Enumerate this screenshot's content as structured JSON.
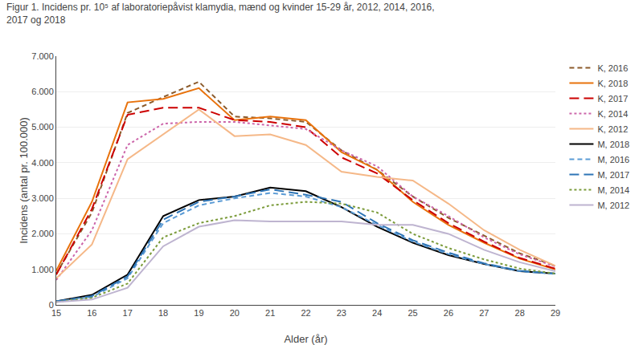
{
  "chart_data": {
    "type": "line",
    "title": "Figur 1. Incidens pr. 10⁵ af laboratoriepåvist klamydia, mænd og kvinder 15-29 år, 2012, 2014, 2016,",
    "subtitle": "2017 og 2018",
    "x_label": "Alder (år)",
    "y_label": "Incidens (antal pr. 100.000)",
    "x": [
      15,
      16,
      17,
      18,
      19,
      20,
      21,
      22,
      23,
      24,
      25,
      26,
      27,
      28,
      29
    ],
    "xlim": [
      15,
      29
    ],
    "xticks": [
      15,
      16,
      17,
      18,
      19,
      20,
      21,
      22,
      23,
      24,
      25,
      26,
      27,
      28,
      29
    ],
    "ylim": [
      0,
      7000
    ],
    "yticks": [
      0,
      {
        "value": 1000,
        "label": "1.000"
      },
      {
        "value": 2000,
        "label": "2.000"
      },
      {
        "value": 3000,
        "label": "3.000"
      },
      {
        "value": 4000,
        "label": "4.000"
      },
      {
        "value": 5000,
        "label": "5.000"
      },
      {
        "value": 6000,
        "label": "6.000"
      },
      {
        "value": 7000,
        "label": "7.000"
      }
    ],
    "grid": "y",
    "legend": "right",
    "series": [
      {
        "name": "K, 2016",
        "color": "#8B5A2B",
        "line_style": "dashed_short",
        "values": [
          870,
          2600,
          5400,
          5850,
          6280,
          5300,
          5250,
          5150,
          4350,
          3800,
          3050,
          2450,
          1950,
          1450,
          1100
        ]
      },
      {
        "name": "K, 2018",
        "color": "#E8720C",
        "line_style": "solid",
        "values": [
          960,
          2900,
          5700,
          5800,
          6100,
          5200,
          5300,
          5200,
          4300,
          3800,
          2900,
          2250,
          1750,
          1300,
          1000
        ]
      },
      {
        "name": "K, 2017",
        "color": "#CC0000",
        "line_style": "dashed_long",
        "values": [
          850,
          2700,
          5350,
          5550,
          5550,
          5200,
          5150,
          5000,
          4150,
          3700,
          2950,
          2300,
          1780,
          1320,
          1020
        ]
      },
      {
        "name": "K, 2014",
        "color": "#CC66AA",
        "line_style": "dotted",
        "values": [
          700,
          2100,
          4500,
          5100,
          5150,
          5150,
          5050,
          4950,
          4350,
          3900,
          3050,
          2500,
          1900,
          1420,
          1080
        ]
      },
      {
        "name": "K, 2012",
        "color": "#F5B888",
        "line_style": "solid",
        "values": [
          750,
          1700,
          4100,
          4800,
          5500,
          4750,
          4800,
          4500,
          3750,
          3600,
          3500,
          2850,
          2100,
          1550,
          1100
        ]
      },
      {
        "name": "M, 2018",
        "color": "#000000",
        "line_style": "solid",
        "values": [
          100,
          280,
          850,
          2500,
          2950,
          3050,
          3300,
          3200,
          2750,
          2200,
          1750,
          1400,
          1150,
          950,
          880
        ]
      },
      {
        "name": "M, 2016",
        "color": "#5B9BD5",
        "line_style": "dashed_short",
        "values": [
          100,
          220,
          750,
          2300,
          2800,
          3000,
          3150,
          3050,
          2750,
          2250,
          1780,
          1430,
          1150,
          950,
          870
        ]
      },
      {
        "name": "M, 2017",
        "color": "#2E75B6",
        "line_style": "dashed_long",
        "values": [
          100,
          250,
          800,
          2400,
          2900,
          3050,
          3250,
          3100,
          2900,
          2300,
          1820,
          1470,
          1170,
          960,
          880
        ]
      },
      {
        "name": "M, 2014",
        "color": "#7B9B3A",
        "line_style": "dotted",
        "values": [
          80,
          200,
          600,
          1900,
          2300,
          2500,
          2800,
          2900,
          2850,
          2600,
          2000,
          1600,
          1280,
          1020,
          880
        ]
      },
      {
        "name": "M, 2012",
        "color": "#BEB4D0",
        "line_style": "solid",
        "values": [
          80,
          150,
          480,
          1650,
          2200,
          2380,
          2350,
          2350,
          2350,
          2250,
          2250,
          2000,
          1550,
          1200,
          950
        ]
      }
    ]
  }
}
